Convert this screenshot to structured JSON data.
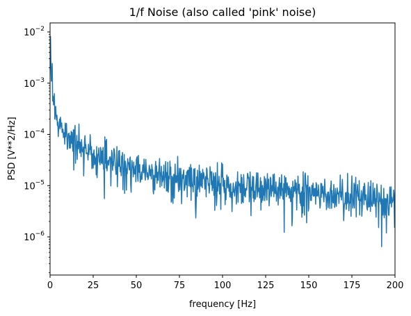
{
  "chart_data": {
    "type": "line",
    "title": "1/f Noise (also called 'pink' noise)",
    "xlabel": "frequency [Hz]",
    "ylabel": "PSD [V**2/Hz]",
    "xlim": [
      0,
      200
    ],
    "ylim": [
      1.8e-07,
      0.015
    ],
    "yscale": "log",
    "grid": false,
    "line_color": "#1f77b4",
    "x_ticks": [
      {
        "value": 0,
        "label": "0"
      },
      {
        "value": 25,
        "label": "25"
      },
      {
        "value": 50,
        "label": "50"
      },
      {
        "value": 75,
        "label": "75"
      },
      {
        "value": 100,
        "label": "100"
      },
      {
        "value": 125,
        "label": "125"
      },
      {
        "value": 150,
        "label": "150"
      },
      {
        "value": 175,
        "label": "175"
      },
      {
        "value": 200,
        "label": "200"
      }
    ],
    "y_ticks": [
      {
        "value": 1e-06,
        "base": "10",
        "exp": "−6"
      },
      {
        "value": 1e-05,
        "base": "10",
        "exp": "−5"
      },
      {
        "value": 0.0001,
        "base": "10",
        "exp": "−4"
      },
      {
        "value": 0.001,
        "base": "10",
        "exp": "−3"
      },
      {
        "value": 0.01,
        "base": "10",
        "exp": "−2"
      }
    ],
    "series": [
      {
        "x": [
          0.5,
          1,
          2,
          3,
          5,
          7.5,
          10,
          15,
          20,
          25,
          30,
          40,
          50,
          60,
          70,
          80,
          90,
          100,
          110,
          120,
          130,
          140,
          150,
          160,
          170,
          180,
          190,
          200
        ],
        "y": [
          0.0025,
          0.0012,
          0.0005,
          0.00028,
          0.00017,
          0.00012,
          0.0001,
          7e-05,
          5.5e-05,
          4e-05,
          3.5e-05,
          2.5e-05,
          2e-05,
          1.7e-05,
          1.45e-05,
          1.3e-05,
          1.2e-05,
          1.1e-05,
          1e-05,
          9e-06,
          8.5e-06,
          8e-06,
          7.2e-06,
          6.8e-06,
          6.3e-06,
          6e-06,
          5.6e-06,
          5.2e-06
        ]
      }
    ]
  }
}
